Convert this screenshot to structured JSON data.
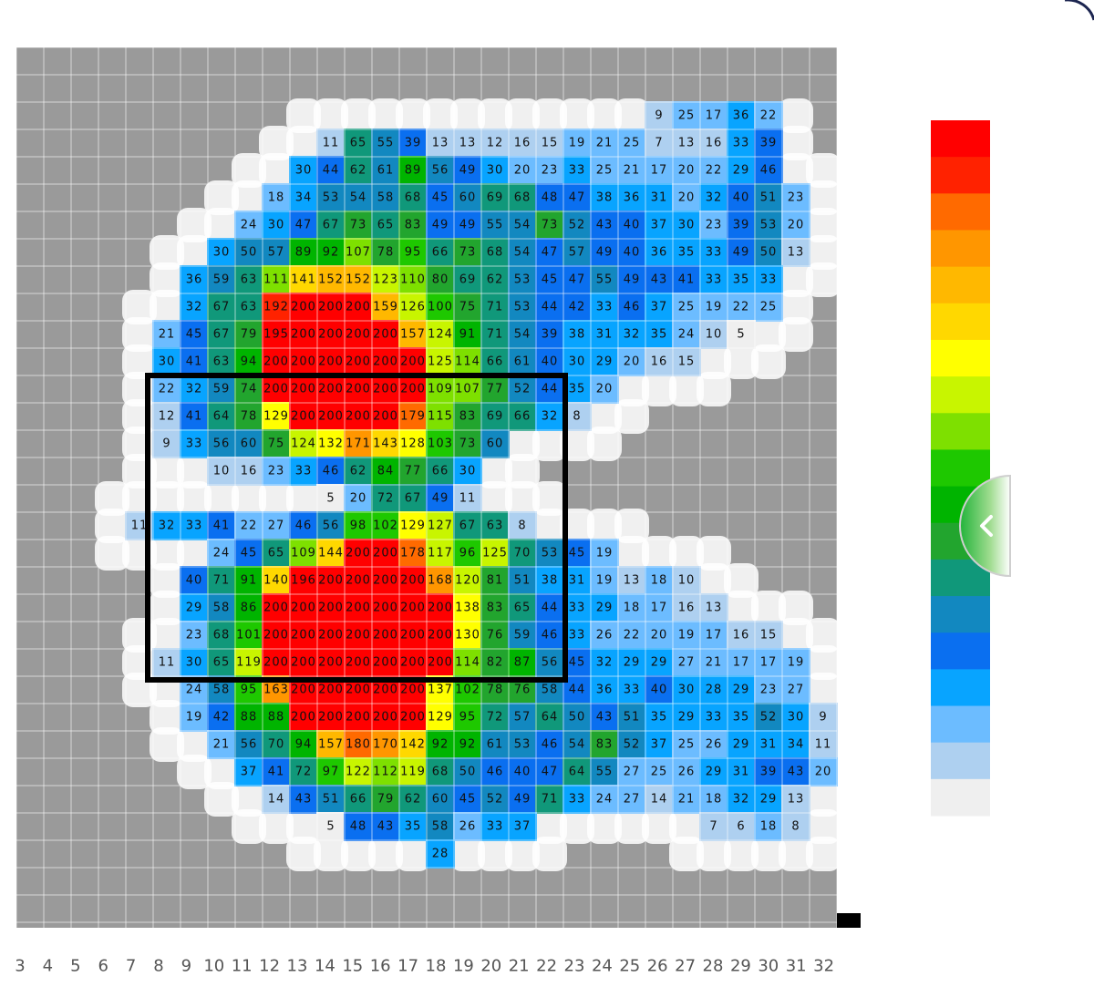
{
  "pressure_map": {
    "rows": [
      [
        null,
        null,
        null,
        null,
        null,
        null,
        null,
        null,
        null,
        null,
        null,
        null,
        null,
        null,
        null,
        null,
        null,
        null,
        null,
        null,
        null,
        null,
        null,
        9,
        25,
        17,
        36,
        22,
        null,
        null
      ],
      [
        null,
        null,
        null,
        null,
        null,
        null,
        null,
        null,
        null,
        null,
        null,
        11,
        65,
        55,
        39,
        13,
        13,
        12,
        16,
        15,
        19,
        21,
        25,
        7,
        13,
        16,
        33,
        39,
        null,
        null
      ],
      [
        null,
        null,
        null,
        null,
        null,
        null,
        null,
        null,
        null,
        null,
        30,
        44,
        62,
        61,
        89,
        56,
        49,
        30,
        20,
        23,
        33,
        25,
        21,
        17,
        20,
        22,
        29,
        46,
        null,
        null
      ],
      [
        null,
        null,
        null,
        null,
        null,
        null,
        null,
        null,
        null,
        18,
        34,
        53,
        54,
        58,
        68,
        45,
        60,
        69,
        68,
        48,
        47,
        38,
        36,
        31,
        20,
        32,
        40,
        51,
        23,
        null
      ],
      [
        null,
        null,
        null,
        null,
        null,
        null,
        null,
        null,
        24,
        30,
        47,
        67,
        73,
        65,
        83,
        49,
        49,
        55,
        54,
        73,
        52,
        43,
        40,
        37,
        30,
        23,
        39,
        53,
        20,
        null
      ],
      [
        null,
        null,
        null,
        null,
        null,
        null,
        null,
        30,
        50,
        57,
        89,
        92,
        107,
        78,
        95,
        66,
        73,
        68,
        54,
        47,
        57,
        49,
        40,
        36,
        35,
        33,
        49,
        50,
        13,
        null
      ],
      [
        null,
        null,
        null,
        null,
        null,
        null,
        36,
        59,
        63,
        111,
        141,
        152,
        152,
        123,
        110,
        80,
        69,
        62,
        53,
        45,
        47,
        55,
        49,
        43,
        41,
        33,
        35,
        33,
        null,
        null
      ],
      [
        null,
        null,
        null,
        null,
        null,
        null,
        32,
        67,
        63,
        192,
        200,
        200,
        200,
        159,
        126,
        100,
        75,
        71,
        53,
        44,
        42,
        33,
        46,
        37,
        25,
        19,
        22,
        25,
        null,
        null
      ],
      [
        null,
        null,
        null,
        null,
        null,
        21,
        45,
        67,
        79,
        195,
        200,
        200,
        200,
        200,
        157,
        124,
        91,
        71,
        54,
        39,
        38,
        31,
        32,
        35,
        24,
        10,
        5,
        null,
        null,
        null
      ],
      [
        null,
        null,
        null,
        null,
        null,
        30,
        41,
        63,
        94,
        200,
        200,
        200,
        200,
        200,
        200,
        125,
        114,
        66,
        61,
        40,
        30,
        29,
        20,
        16,
        15,
        null,
        null,
        null,
        null,
        null
      ],
      [
        null,
        null,
        null,
        null,
        null,
        22,
        32,
        59,
        74,
        200,
        200,
        200,
        200,
        200,
        200,
        109,
        107,
        77,
        52,
        44,
        35,
        20,
        null,
        null,
        null,
        null,
        null,
        null,
        null,
        null
      ],
      [
        null,
        null,
        null,
        null,
        null,
        12,
        41,
        64,
        78,
        129,
        200,
        200,
        200,
        200,
        179,
        115,
        83,
        69,
        66,
        32,
        8,
        null,
        null,
        null,
        null,
        null,
        null,
        null,
        null,
        null
      ],
      [
        null,
        null,
        null,
        null,
        null,
        9,
        33,
        56,
        60,
        75,
        124,
        132,
        171,
        143,
        128,
        103,
        73,
        60,
        null,
        null,
        null,
        null,
        null,
        null,
        null,
        null,
        null,
        null,
        null,
        null
      ],
      [
        null,
        null,
        null,
        null,
        null,
        null,
        null,
        10,
        16,
        23,
        33,
        46,
        62,
        84,
        77,
        66,
        30,
        null,
        null,
        null,
        null,
        null,
        null,
        null,
        null,
        null,
        null,
        null,
        null,
        null
      ],
      [
        null,
        null,
        null,
        null,
        null,
        null,
        null,
        null,
        null,
        null,
        null,
        5,
        20,
        72,
        67,
        49,
        11,
        null,
        null,
        null,
        null,
        null,
        null,
        null,
        null,
        null,
        null,
        null,
        null,
        null
      ],
      [
        null,
        null,
        null,
        null,
        11,
        32,
        33,
        41,
        22,
        27,
        46,
        56,
        98,
        102,
        129,
        127,
        67,
        63,
        8,
        null,
        null,
        null,
        null,
        null,
        null,
        null,
        null,
        null,
        null,
        null
      ],
      [
        null,
        null,
        null,
        null,
        null,
        null,
        null,
        24,
        45,
        65,
        109,
        144,
        200,
        200,
        178,
        117,
        96,
        125,
        70,
        53,
        45,
        19,
        null,
        null,
        null,
        null,
        null,
        null,
        null,
        null
      ],
      [
        null,
        null,
        null,
        null,
        null,
        null,
        40,
        71,
        91,
        140,
        196,
        200,
        200,
        200,
        200,
        168,
        120,
        81,
        51,
        38,
        31,
        19,
        13,
        18,
        10,
        null,
        null,
        null,
        null,
        null
      ],
      [
        null,
        null,
        null,
        null,
        null,
        null,
        29,
        58,
        86,
        200,
        200,
        200,
        200,
        200,
        200,
        200,
        138,
        83,
        65,
        44,
        33,
        29,
        18,
        17,
        16,
        13,
        null,
        null,
        null,
        null
      ],
      [
        null,
        null,
        null,
        null,
        null,
        null,
        23,
        68,
        101,
        200,
        200,
        200,
        200,
        200,
        200,
        200,
        130,
        76,
        59,
        46,
        33,
        26,
        22,
        20,
        19,
        17,
        16,
        15,
        null,
        null
      ],
      [
        null,
        null,
        null,
        null,
        null,
        11,
        30,
        65,
        119,
        200,
        200,
        200,
        200,
        200,
        200,
        200,
        114,
        82,
        87,
        56,
        45,
        32,
        29,
        29,
        27,
        21,
        17,
        17,
        19,
        null
      ],
      [
        null,
        null,
        null,
        null,
        null,
        null,
        24,
        58,
        95,
        163,
        200,
        200,
        200,
        200,
        200,
        137,
        102,
        78,
        76,
        58,
        44,
        36,
        33,
        40,
        30,
        28,
        29,
        23,
        27,
        null
      ],
      [
        null,
        null,
        null,
        null,
        null,
        null,
        19,
        42,
        88,
        88,
        200,
        200,
        200,
        200,
        200,
        129,
        95,
        72,
        57,
        64,
        50,
        43,
        51,
        35,
        29,
        33,
        35,
        52,
        30,
        9
      ],
      [
        null,
        null,
        null,
        null,
        null,
        null,
        null,
        21,
        56,
        70,
        94,
        157,
        180,
        170,
        142,
        92,
        92,
        61,
        53,
        46,
        54,
        83,
        52,
        37,
        25,
        26,
        29,
        31,
        34,
        11
      ],
      [
        null,
        null,
        null,
        null,
        null,
        null,
        null,
        null,
        37,
        41,
        72,
        97,
        122,
        112,
        119,
        68,
        50,
        46,
        40,
        47,
        64,
        55,
        27,
        25,
        26,
        29,
        31,
        39,
        43,
        20
      ],
      [
        null,
        null,
        null,
        null,
        null,
        null,
        null,
        null,
        null,
        14,
        43,
        51,
        66,
        79,
        62,
        60,
        45,
        52,
        49,
        71,
        33,
        24,
        27,
        14,
        21,
        18,
        32,
        29,
        13,
        null
      ],
      [
        null,
        null,
        null,
        null,
        null,
        null,
        null,
        null,
        null,
        null,
        null,
        5,
        48,
        43,
        35,
        58,
        26,
        33,
        37,
        null,
        null,
        null,
        null,
        null,
        null,
        7,
        6,
        18,
        8,
        null
      ],
      [
        null,
        null,
        null,
        null,
        null,
        null,
        null,
        null,
        null,
        null,
        null,
        null,
        null,
        null,
        null,
        28,
        null,
        null,
        null,
        null,
        null,
        null,
        null,
        null,
        null,
        null,
        null,
        null,
        null,
        null
      ]
    ],
    "column_labels": [
      3,
      4,
      5,
      6,
      7,
      8,
      9,
      10,
      11,
      12,
      13,
      14,
      15,
      16,
      17,
      18,
      19,
      20,
      21,
      22,
      23,
      24,
      25,
      26,
      27,
      28,
      29,
      30,
      31,
      32
    ],
    "value_range": [
      0,
      200
    ],
    "colorscale": [
      "#ff0000",
      "#ff2200",
      "#ff6a00",
      "#ff9600",
      "#ffb800",
      "#ffd800",
      "#ffff00",
      "#c8f500",
      "#7ee000",
      "#1ec800",
      "#00b400",
      "#22a52e",
      "#10987a",
      "#1288c0",
      "#0a6ff0",
      "#08a4ff",
      "#6cbcff",
      "#aed0f0",
      "#efefef"
    ]
  }
}
